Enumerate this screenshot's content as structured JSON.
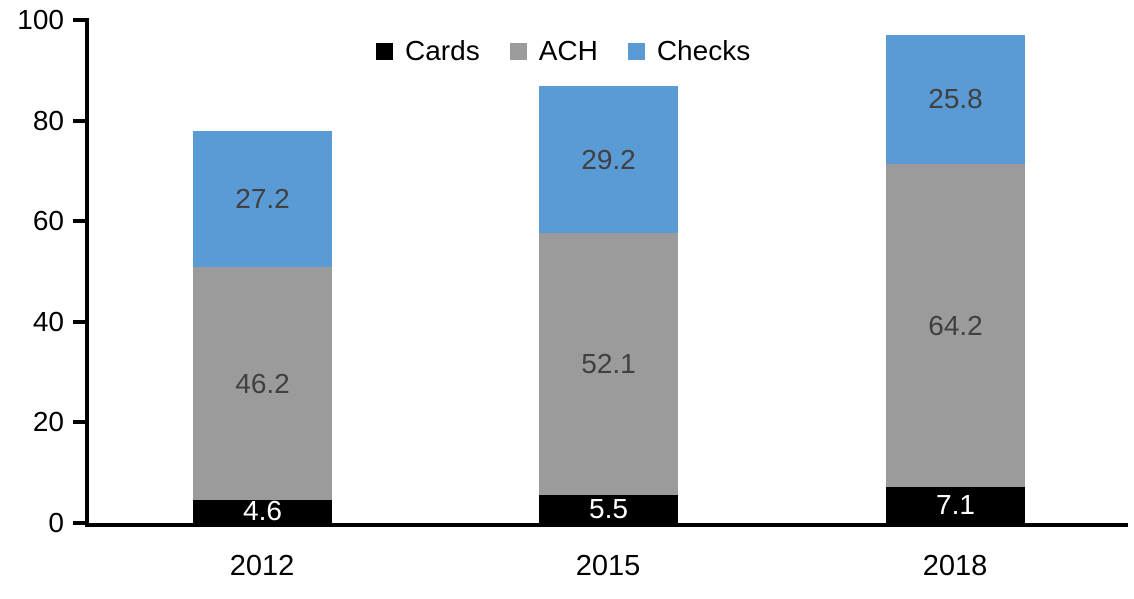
{
  "chart_data": {
    "type": "bar",
    "stacked": true,
    "title": "",
    "xlabel": "",
    "ylabel": "",
    "categories": [
      "2012",
      "2015",
      "2018"
    ],
    "series": [
      {
        "name": "Cards",
        "color": "#000000",
        "label_color": "#FFFFFF",
        "values": [
          4.6,
          5.5,
          7.1
        ]
      },
      {
        "name": "ACH",
        "color": "#9B9B9B",
        "label_color": "#404040",
        "values": [
          46.2,
          52.1,
          64.2
        ]
      },
      {
        "name": "Checks",
        "color": "#5B9BD5",
        "label_color": "#404040",
        "values": [
          27.2,
          29.2,
          25.8
        ]
      }
    ],
    "totals": [
      78.0,
      86.8,
      97.1
    ],
    "ylim": [
      0,
      100
    ],
    "yticks": [
      0,
      20,
      40,
      60,
      80,
      100
    ],
    "grid": false,
    "legend_position": "top",
    "axis_color": "#000000",
    "tick_label_color": "#000000"
  }
}
